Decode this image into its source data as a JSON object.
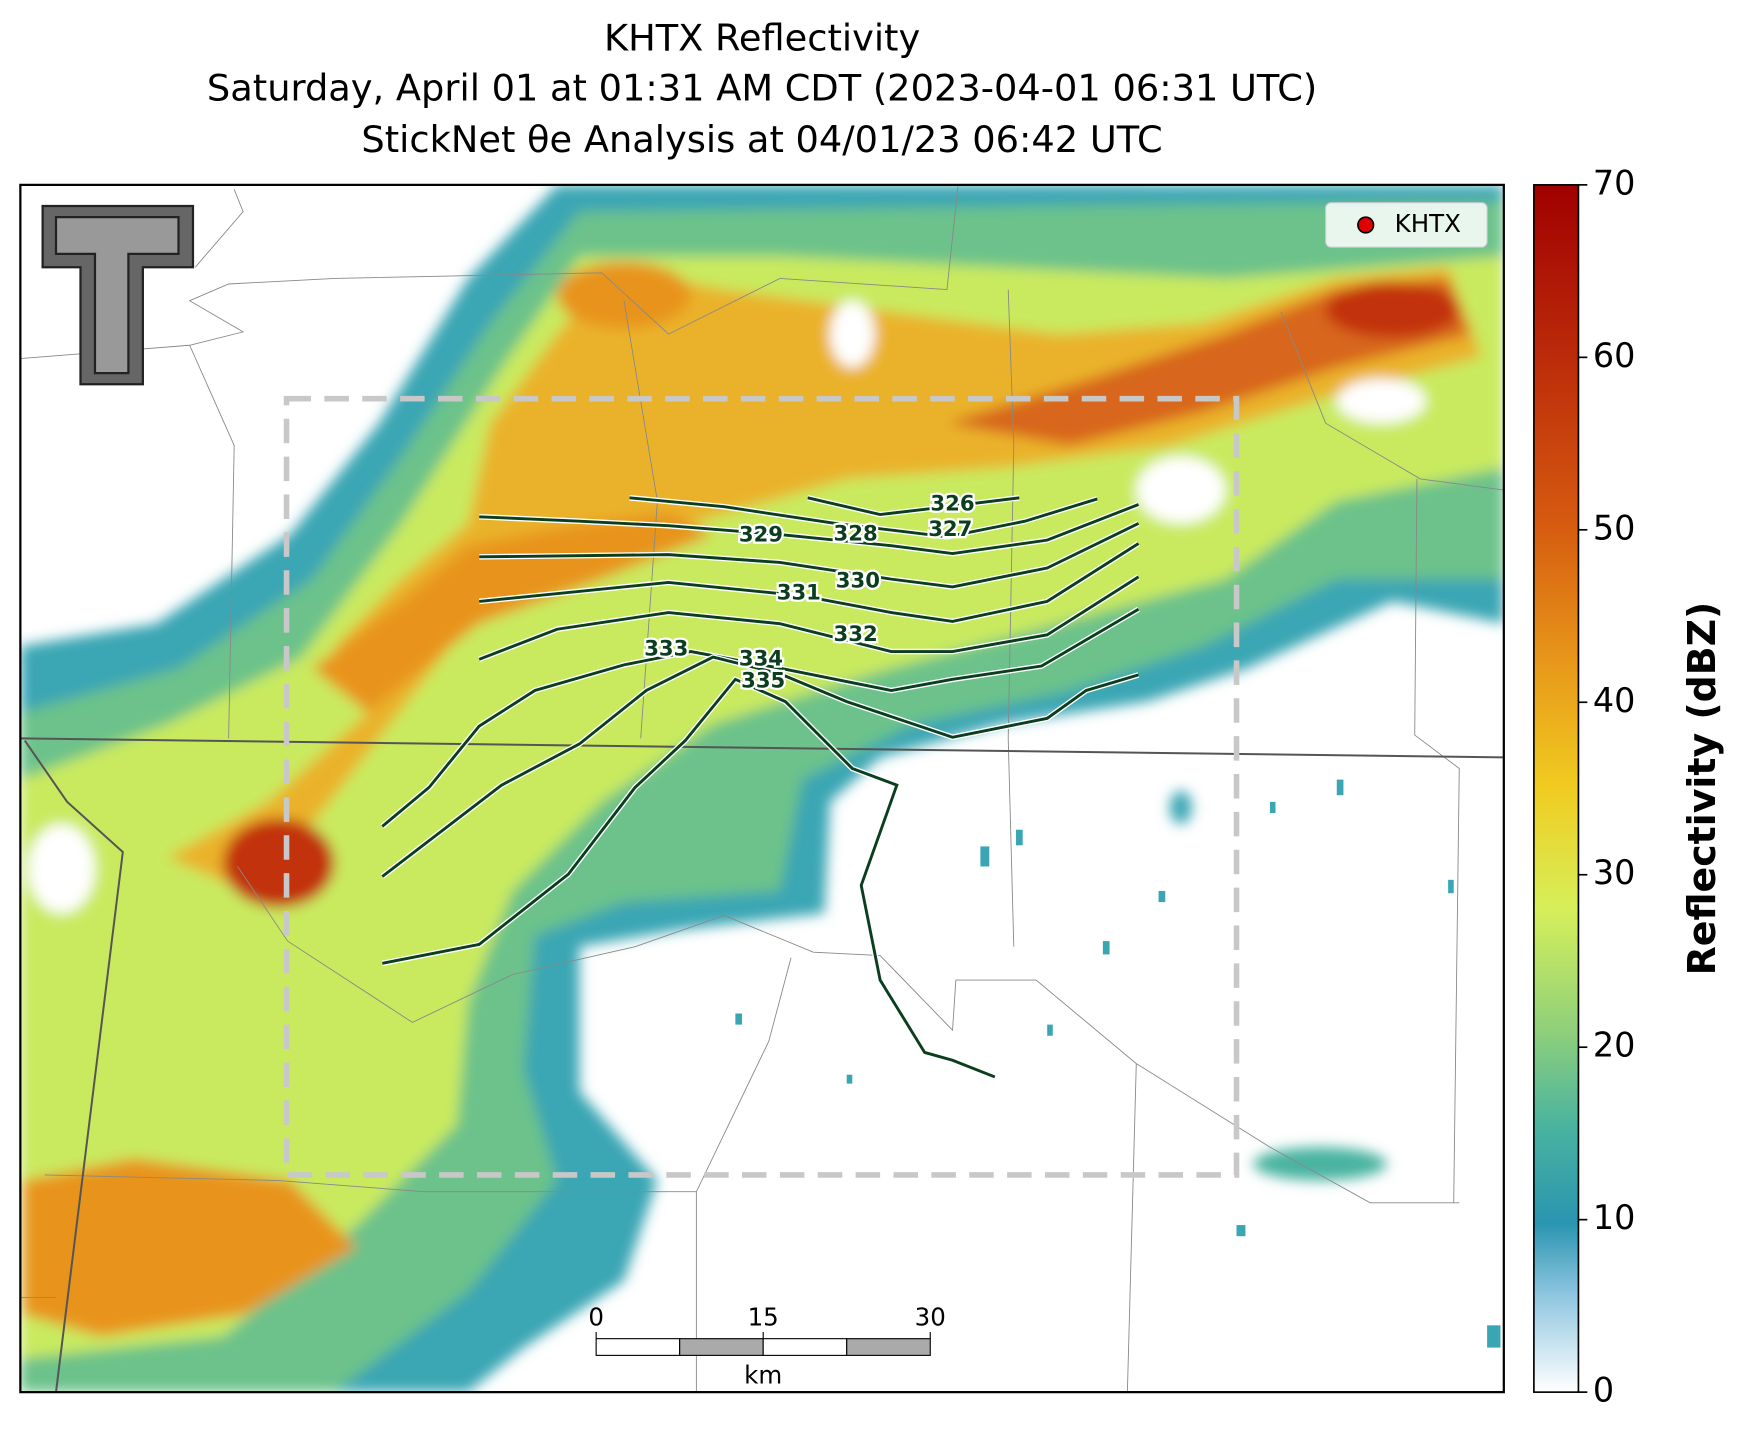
{
  "title": {
    "lines": [
      "KHTX Reflectivity",
      "Saturday, April 01 at 01:31 AM CDT (2023-04-01 06:31 UTC)",
      "StickNet θe Analysis at 04/01/23 06:42 UTC"
    ]
  },
  "legend": {
    "label": "KHTX"
  },
  "colorbar": {
    "label": "Reflectivity (dBZ)",
    "lim": [
      0,
      70
    ],
    "ticks": [
      0,
      10,
      20,
      30,
      40,
      50,
      60,
      70
    ]
  },
  "contours": [
    {
      "label": 326
    },
    {
      "label": 327
    },
    {
      "label": 328
    },
    {
      "label": 329
    },
    {
      "label": 330
    },
    {
      "label": 331
    },
    {
      "label": 332
    },
    {
      "label": 333
    },
    {
      "label": 334
    },
    {
      "label": 335
    }
  ],
  "scale_bar": {
    "ticks": [
      0,
      15,
      30
    ],
    "unit": "km"
  }
}
